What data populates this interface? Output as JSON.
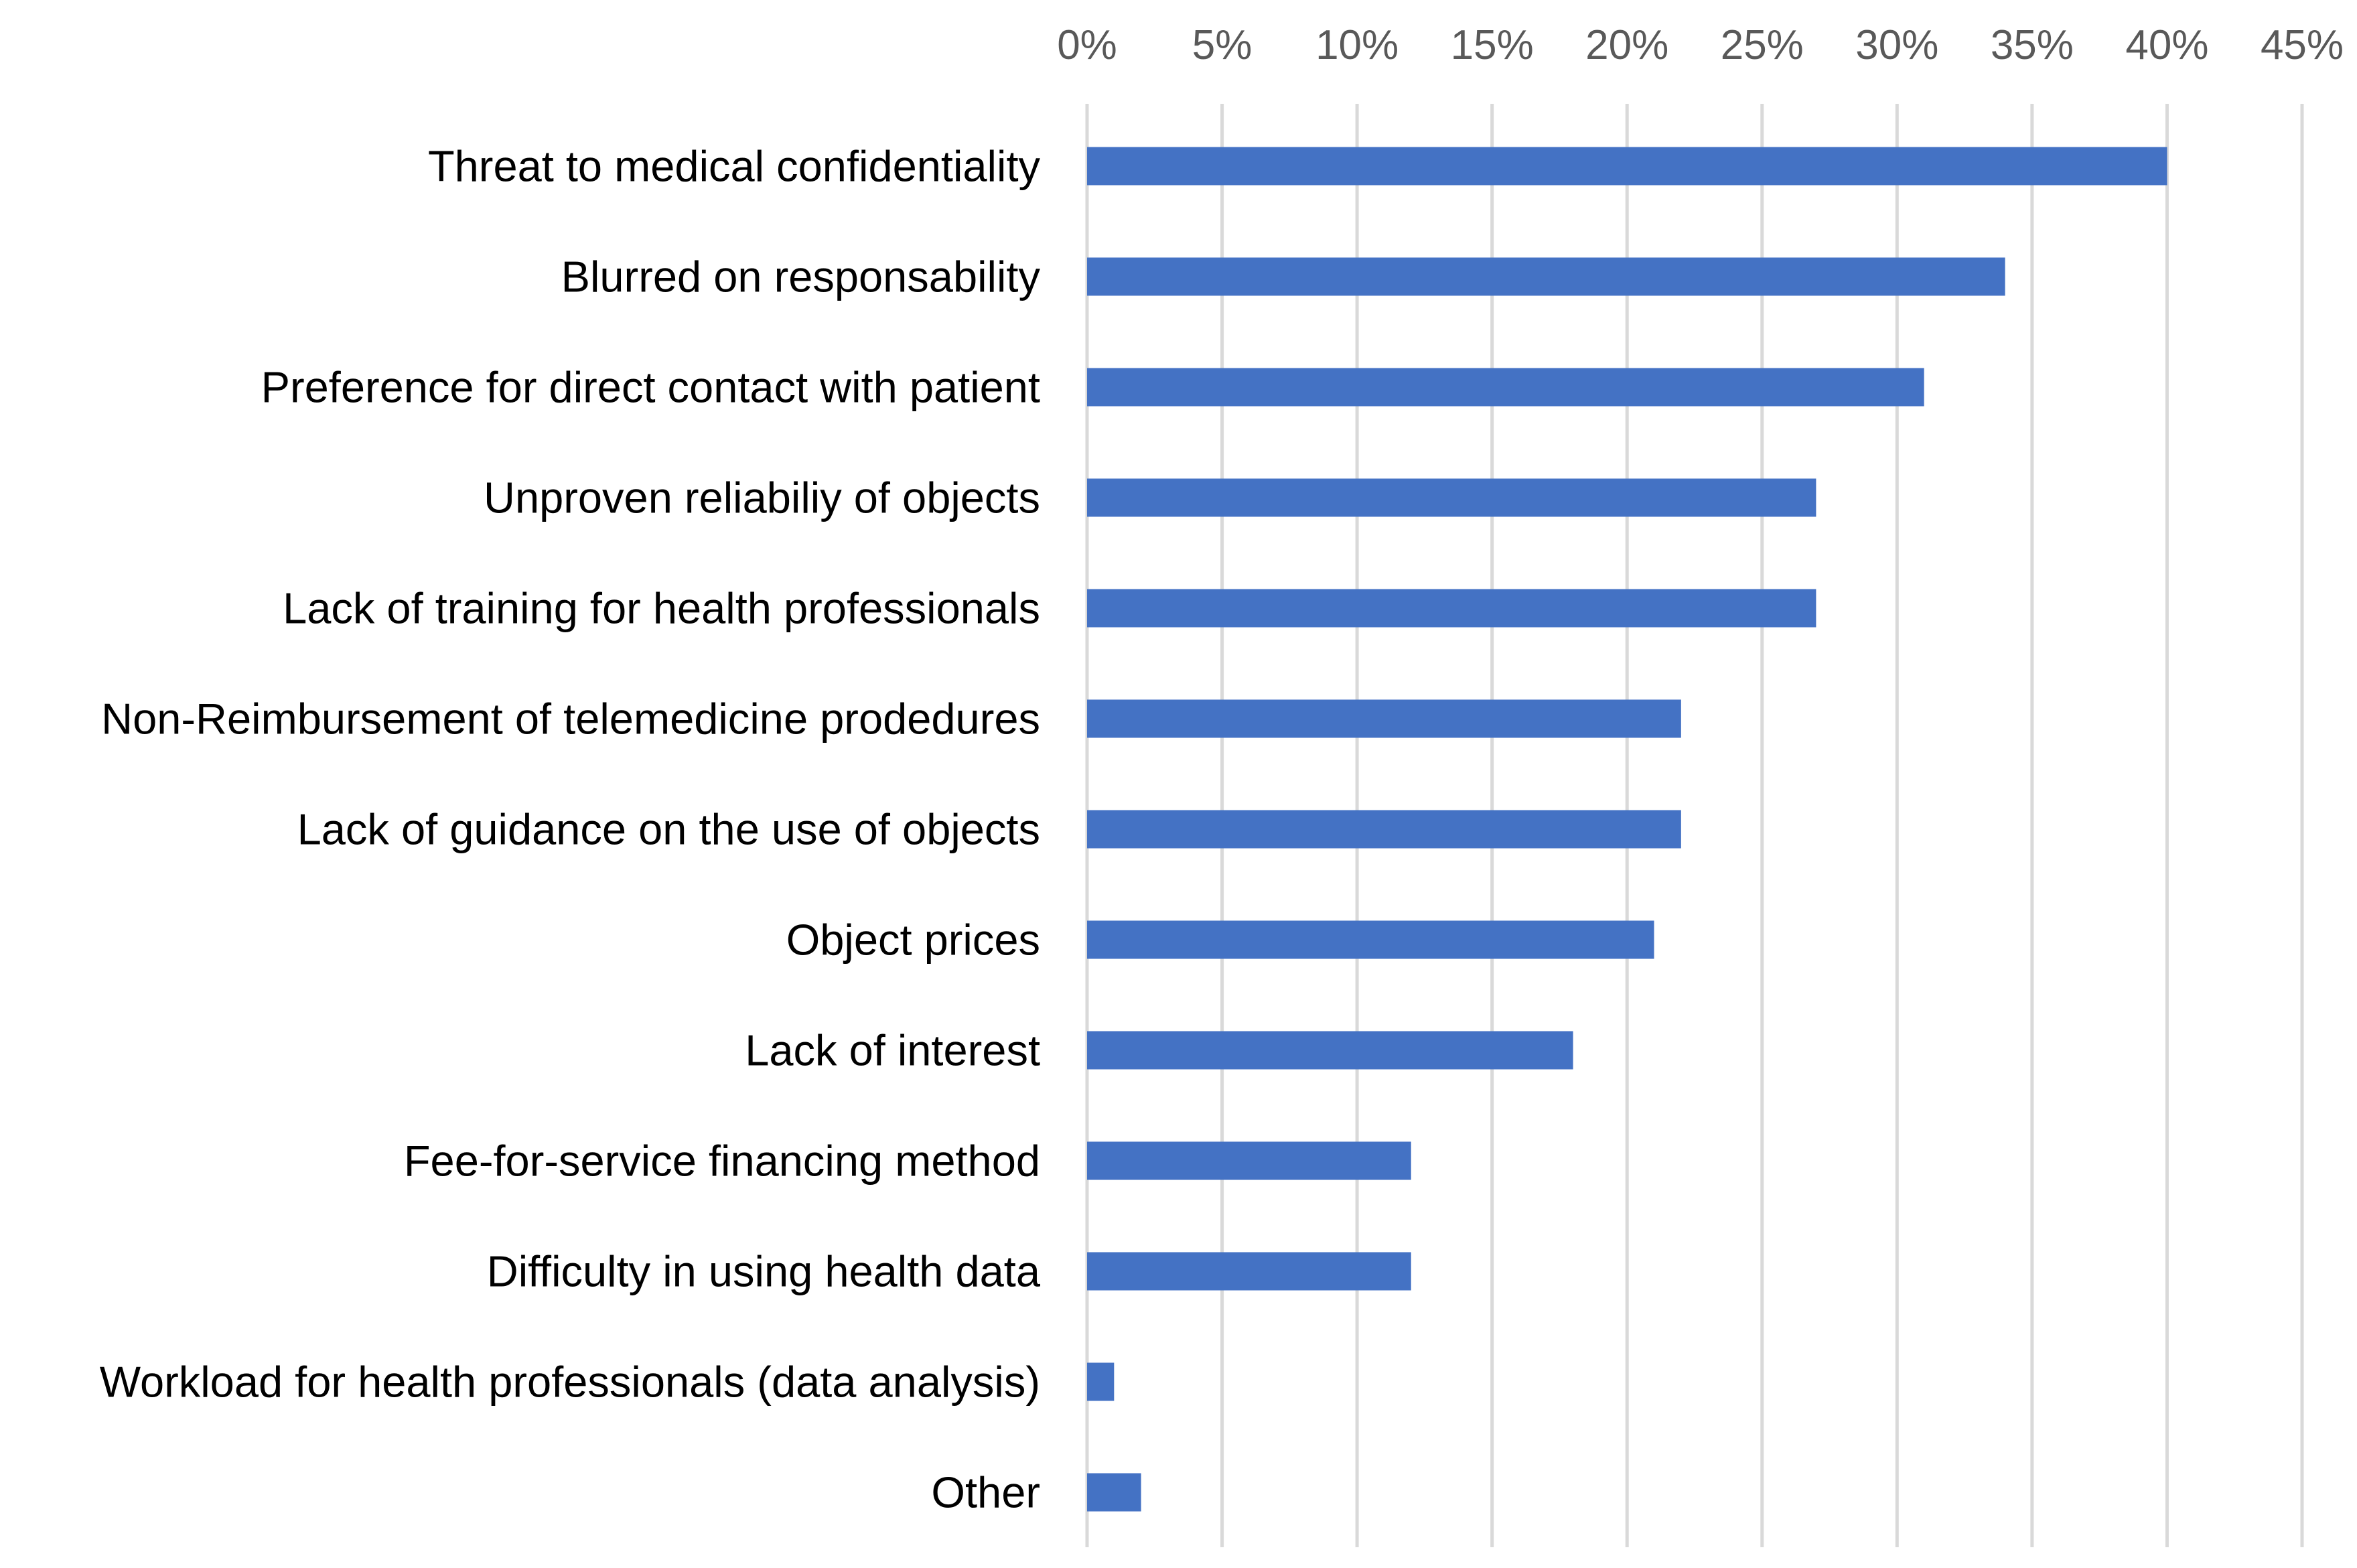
{
  "chart_data": {
    "type": "bar",
    "orientation": "horizontal",
    "title": "",
    "xlabel": "",
    "ylabel": "",
    "categories": [
      "Threat to medical confidentiality",
      "Blurred on responsability",
      "Preference for direct contact with patient",
      "Unproven reliabiliy of objects",
      "Lack of training for health professionals",
      "Non-Reimbursement of telemedicine prodedures",
      "Lack of guidance on the use of objects",
      "Object prices",
      "Lack of interest",
      "Fee-for-service financing method",
      "Difficulty in using health data",
      "Workload for health professionals (data analysis)",
      "Other"
    ],
    "values": [
      40,
      34,
      31,
      27,
      27,
      22,
      22,
      21,
      18,
      12,
      12,
      1,
      2
    ],
    "value_unit": "%",
    "xlim": [
      0,
      45
    ],
    "x_ticks": [
      "0%",
      "5%",
      "10%",
      "15%",
      "20%",
      "25%",
      "30%",
      "35%",
      "40%",
      "45%"
    ],
    "x_tick_values": [
      0,
      5,
      10,
      15,
      20,
      25,
      30,
      35,
      40,
      45
    ],
    "x_axis_position": "top",
    "grid": "vertical",
    "legend": "none",
    "bar_color": "#4472c4",
    "grid_color": "#d9d9d9",
    "tick_label_color": "#595959",
    "category_label_color": "#000000"
  }
}
